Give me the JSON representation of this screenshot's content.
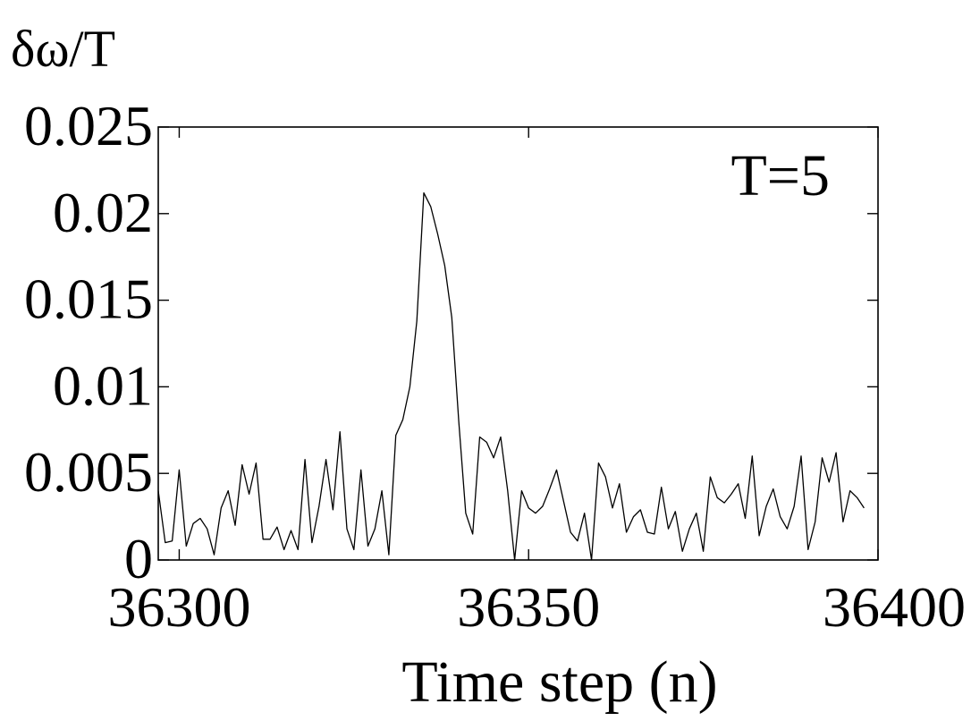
{
  "chart_data": {
    "type": "line",
    "title": "",
    "xlabel": "Time step  (n)",
    "ylabel": "δω/T",
    "annotation": "T=5",
    "xlim": [
      36297,
      36400
    ],
    "ylim": [
      0,
      0.025
    ],
    "x_ticks": [
      36300,
      36350,
      36400
    ],
    "x_tick_labels": [
      "36300",
      "36350",
      "36400"
    ],
    "y_ticks": [
      0,
      0.005,
      0.01,
      0.015,
      0.02,
      0.025
    ],
    "y_tick_labels": [
      "0",
      "0.005",
      "0.01",
      "0.015",
      "0.02",
      "0.025"
    ],
    "grid": false,
    "legend": "none",
    "line_color": "#000000",
    "series": [
      {
        "x_start": 36297,
        "x_step": 1,
        "values": [
          0.004,
          0.001,
          0.0011,
          0.0052,
          0.0008,
          0.0021,
          0.0024,
          0.0018,
          0.0003,
          0.003,
          0.004,
          0.002,
          0.0055,
          0.0038,
          0.0056,
          0.0012,
          0.0012,
          0.0019,
          0.0006,
          0.0017,
          0.0006,
          0.0058,
          0.001,
          0.0031,
          0.0058,
          0.0029,
          0.0074,
          0.0018,
          0.0006,
          0.0052,
          0.0008,
          0.0018,
          0.004,
          0.0003,
          0.0072,
          0.0081,
          0.01,
          0.0138,
          0.0212,
          0.0204,
          0.0188,
          0.017,
          0.014,
          0.008,
          0.0027,
          0.0015,
          0.0071,
          0.0068,
          0.0059,
          0.0071,
          0.004,
          0.0,
          0.004,
          0.003,
          0.0027,
          0.0031,
          0.0041,
          0.0052,
          0.0034,
          0.0016,
          0.0011,
          0.0027,
          0.0,
          0.0056,
          0.0048,
          0.003,
          0.0044,
          0.0016,
          0.0025,
          0.0029,
          0.0016,
          0.0015,
          0.0042,
          0.0018,
          0.0028,
          0.0005,
          0.0018,
          0.0027,
          0.0005,
          0.0048,
          0.0036,
          0.0033,
          0.0038,
          0.0044,
          0.0024,
          0.006,
          0.0014,
          0.0031,
          0.0041,
          0.0025,
          0.0018,
          0.0031,
          0.006,
          0.0006,
          0.0022,
          0.0059,
          0.0045,
          0.0062,
          0.0022,
          0.004,
          0.0036,
          0.003
        ]
      }
    ]
  }
}
